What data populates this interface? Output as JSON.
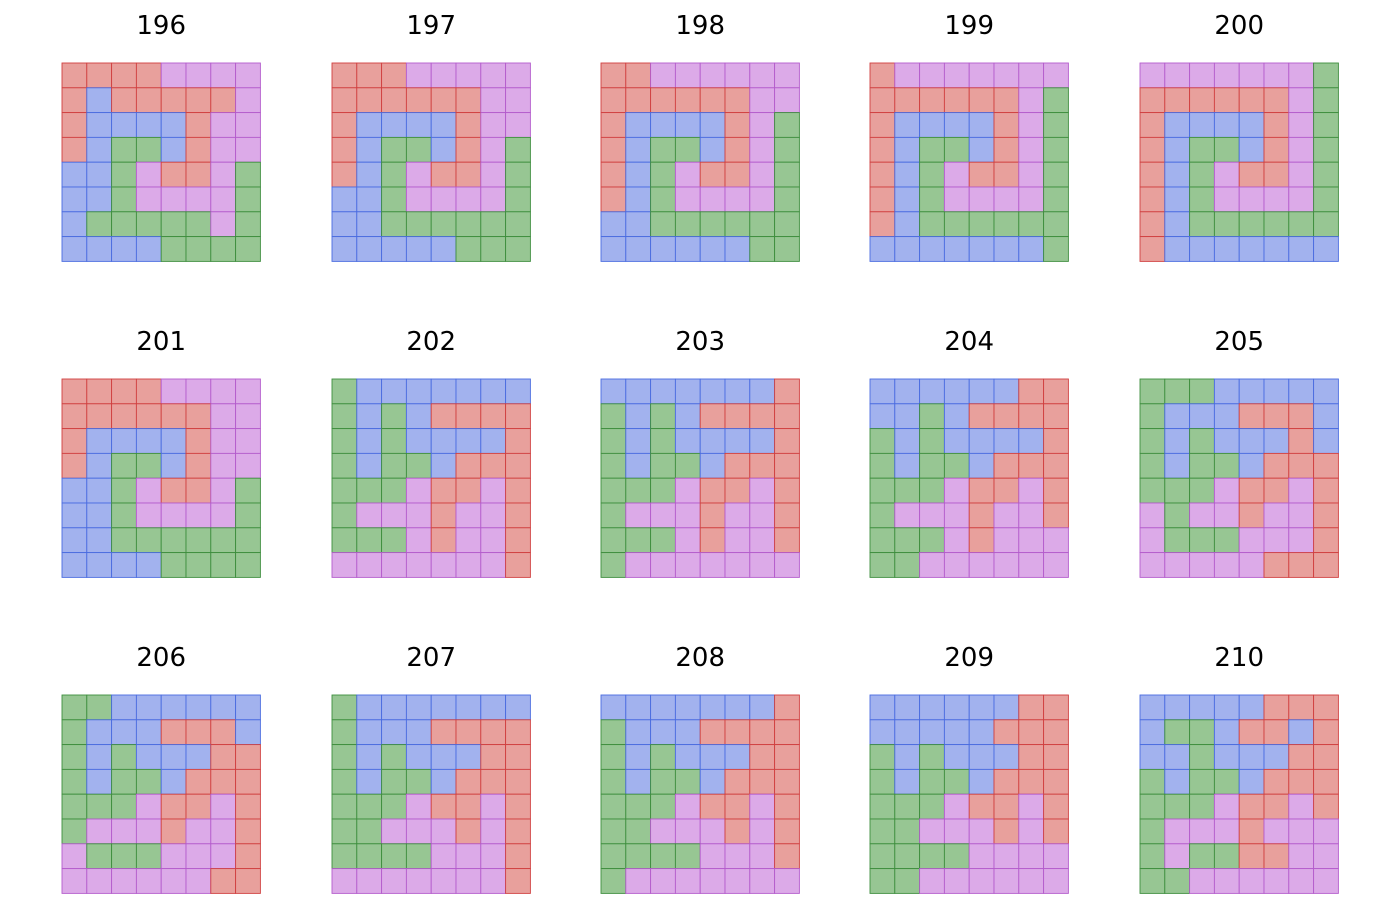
{
  "colors": {
    "R": {
      "fill": "#E8A09C",
      "stroke": "#D04040"
    },
    "B": {
      "fill": "#A2B2EE",
      "stroke": "#4A6CE0"
    },
    "G": {
      "fill": "#97C693",
      "stroke": "#3E8E3E"
    },
    "P": {
      "fill": "#DCAAE8",
      "stroke": "#B45CCC"
    }
  },
  "panels": [
    {
      "label": "196",
      "rows": [
        "RRRRPPPP",
        "RBRRRRRP",
        "RBBBBRPP",
        "RBGGBRPP",
        "BBGPRRPG",
        "BBGPPPPG",
        "BGGGGGPG",
        "BBBBGGGG"
      ]
    },
    {
      "label": "197",
      "rows": [
        "RRRPPPPP",
        "RRRRRRPP",
        "RBBBBRPP",
        "RBGGBRPG",
        "RBGPRRPG",
        "BBGPPPPG",
        "BBGGGGGG",
        "BBBBBGGG"
      ]
    },
    {
      "label": "198",
      "rows": [
        "RRPPPPPP",
        "RRRRRRPP",
        "RBBBBRPG",
        "RBGGBRPG",
        "RBGPRRPG",
        "RBGPPPPG",
        "BBGGGGGG",
        "BBBBBBGG"
      ]
    },
    {
      "label": "199",
      "rows": [
        "RPPPPPPP",
        "RRRRRRPG",
        "RBBBBRPG",
        "RBGGBRPG",
        "RBGPRRPG",
        "RBGPPPPG",
        "RBGGGGGG",
        "BBBBBBBG"
      ]
    },
    {
      "label": "200",
      "rows": [
        "PPPPPPPG",
        "RRRRRRPG",
        "RBBBBRPG",
        "RBGGBRPG",
        "RBGPRRPG",
        "RBGPPPPG",
        "RBGGGGGG",
        "RBBBBBBB"
      ]
    },
    {
      "label": "201",
      "rows": [
        "RRRRPPPP",
        "RRRRRRPP",
        "RBBBBRPP",
        "RBGGBRPP",
        "BBGPRRPG",
        "BBGPPPPG",
        "BBGGGGGG",
        "BBBBGGGG"
      ]
    },
    {
      "label": "202",
      "rows": [
        "GBBBBBBB",
        "GBGBRRRR",
        "GBGBBBBR",
        "GBGGBRRR",
        "GGGPRRPR",
        "GPPPRPPR",
        "GGGPRPPR",
        "PPPPPPPR"
      ]
    },
    {
      "label": "203",
      "rows": [
        "BBBBBBBR",
        "GBGBRRRR",
        "GBGBBBBR",
        "GBGGBRRR",
        "GGGPRRPR",
        "GPPPRPPR",
        "GGGPRPPR",
        "GPPPPPPP"
      ]
    },
    {
      "label": "204",
      "rows": [
        "BBBBBBRR",
        "BBGBRRRR",
        "GBGBBBBR",
        "GBGGBRRR",
        "GGGPRRPR",
        "GPPPRPPR",
        "GGGPRPPP",
        "GGPPPPPP"
      ]
    },
    {
      "label": "205",
      "rows": [
        "GGGBBBBB",
        "GBBBRRRB",
        "GBGBBBRB",
        "GBGGBRRR",
        "GGGPRRPR",
        "PGPPRPPR",
        "PGGGPPPR",
        "PPPPPRRR"
      ]
    },
    {
      "label": "206",
      "rows": [
        "GGBBBBBB",
        "GBBBRRRB",
        "GBGBBBRR",
        "GBGGBRRR",
        "GGGPRRPR",
        "GPPPRPPR",
        "PGGGPPPR",
        "PPPPPPRR"
      ]
    },
    {
      "label": "207",
      "rows": [
        "GBBBBBBB",
        "GBBBRRRR",
        "GBGBBBRR",
        "GBGGBRRR",
        "GGGPRRPR",
        "GGPPPRPR",
        "GGGGPPPR",
        "PPPPPPPR"
      ]
    },
    {
      "label": "208",
      "rows": [
        "BBBBBBBR",
        "GBBBRRRR",
        "GBGBBBRR",
        "GBGGBRRR",
        "GGGPRRPR",
        "GGPPPRPR",
        "GGGGPPPR",
        "GPPPPPPP"
      ]
    },
    {
      "label": "209",
      "rows": [
        "BBBBBBRR",
        "BBBBBRRR",
        "GBGBBBRR",
        "GBGGBRRR",
        "GGGPRRPR",
        "GGPPPRPR",
        "GGGGPPPP",
        "GGPPPPPP"
      ]
    },
    {
      "label": "210",
      "rows": [
        "BBBBBRRR",
        "BGGBRRBR",
        "BBGBBBRR",
        "GBGGBRRR",
        "GGGPRRPR",
        "GPPPRPPP",
        "GPGGRRPP",
        "GGPPPPPP"
      ]
    }
  ]
}
